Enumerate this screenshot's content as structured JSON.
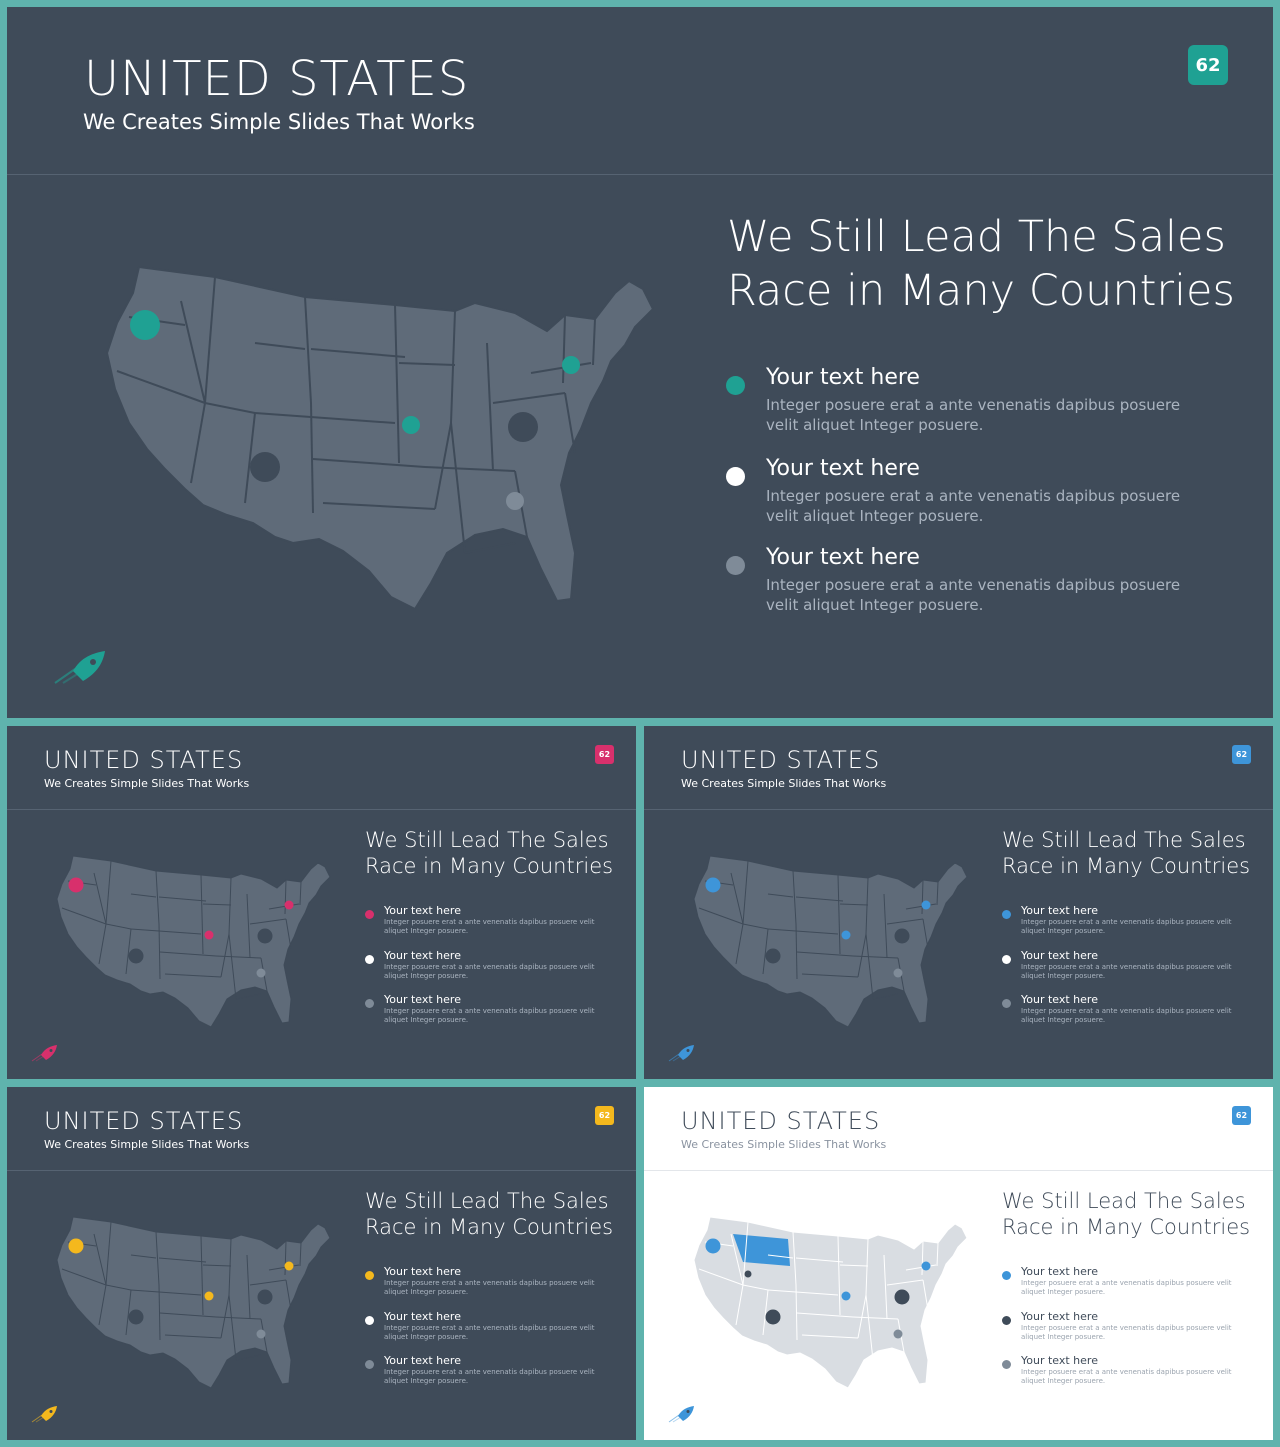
{
  "slides": [
    {
      "id": "big",
      "title": "UNITED STATES",
      "subtitle": "We Creates Simple Slides That Works",
      "page_number": "62",
      "headline_line1": "We Still Lead The Sales",
      "headline_line2": "Race in Many Countries",
      "accent": "#1fa193",
      "theme": "dark",
      "items": [
        {
          "title": "Your text here",
          "body": "Integer posuere erat a ante venenatis dapibus posuere velit aliquet Integer posuere.",
          "color": "#1fa193"
        },
        {
          "title": "Your text here",
          "body": "Integer posuere erat a ante venenatis dapibus posuere velit aliquet Integer posuere.",
          "color": "#ffffff"
        },
        {
          "title": "Your text here",
          "body": "Integer posuere erat a ante venenatis dapibus posuere velit aliquet Integer posuere.",
          "color": "#7f8b98"
        }
      ]
    },
    {
      "id": "pink",
      "title": "UNITED STATES",
      "subtitle": "We Creates Simple Slides That Works",
      "page_number": "62",
      "headline_line1": "We Still Lead The Sales",
      "headline_line2": "Race in Many Countries",
      "accent": "#d8306c",
      "theme": "dark",
      "items": [
        {
          "title": "Your text here",
          "body": "Integer posuere erat a ante venenatis dapibus posuere velit aliquet Integer posuere.",
          "color": "#d8306c"
        },
        {
          "title": "Your text here",
          "body": "Integer posuere erat a ante venenatis dapibus posuere velit aliquet Integer posuere.",
          "color": "#ffffff"
        },
        {
          "title": "Your text here",
          "body": "Integer posuere erat a ante venenatis dapibus posuere velit aliquet Integer posuere.",
          "color": "#7f8b98"
        }
      ]
    },
    {
      "id": "blue",
      "title": "UNITED STATES",
      "subtitle": "We Creates Simple Slides That Works",
      "page_number": "62",
      "headline_line1": "We Still Lead The Sales",
      "headline_line2": "Race in Many Countries",
      "accent": "#3e95d9",
      "theme": "dark",
      "items": [
        {
          "title": "Your text here",
          "body": "Integer posuere erat a ante venenatis dapibus posuere velit aliquet Integer posuere.",
          "color": "#3e95d9"
        },
        {
          "title": "Your text here",
          "body": "Integer posuere erat a ante venenatis dapibus posuere velit aliquet Integer posuere.",
          "color": "#ffffff"
        },
        {
          "title": "Your text here",
          "body": "Integer posuere erat a ante venenatis dapibus posuere velit aliquet Integer posuere.",
          "color": "#7f8b98"
        }
      ]
    },
    {
      "id": "yellow",
      "title": "UNITED STATES",
      "subtitle": "We Creates Simple Slides That Works",
      "page_number": "62",
      "headline_line1": "We Still Lead The Sales",
      "headline_line2": "Race in Many Countries",
      "accent": "#f4b81d",
      "theme": "dark",
      "items": [
        {
          "title": "Your text here",
          "body": "Integer posuere erat a ante venenatis dapibus posuere velit aliquet Integer posuere.",
          "color": "#f4b81d"
        },
        {
          "title": "Your text here",
          "body": "Integer posuere erat a ante venenatis dapibus posuere velit aliquet Integer posuere.",
          "color": "#ffffff"
        },
        {
          "title": "Your text here",
          "body": "Integer posuere erat a ante venenatis dapibus posuere velit aliquet Integer posuere.",
          "color": "#7f8b98"
        }
      ]
    },
    {
      "id": "light",
      "title": "UNITED STATES",
      "subtitle": "We Creates Simple Slides That Works",
      "page_number": "62",
      "headline_line1": "We Still Lead The Sales",
      "headline_line2": "Race in Many Countries",
      "accent": "#3e95d9",
      "theme": "light",
      "items": [
        {
          "title": "Your text here",
          "body": "Integer posuere erat a ante venenatis dapibus posuere velit aliquet Integer posuere.",
          "color": "#3e95d9"
        },
        {
          "title": "Your text here",
          "body": "Integer posuere erat a ante venenatis dapibus posuere velit aliquet Integer posuere.",
          "color": "#3f4b59"
        },
        {
          "title": "Your text here",
          "body": "Integer posuere erat a ante venenatis dapibus posuere velit aliquet Integer posuere.",
          "color": "#7f8b98"
        }
      ]
    }
  ],
  "map_colors": {
    "dark_land": "#5f6b79",
    "dark_border": "#3f4b59",
    "light_land": "#d9dde2",
    "light_border": "#ffffff",
    "highlight_state": "#3e95d9"
  }
}
